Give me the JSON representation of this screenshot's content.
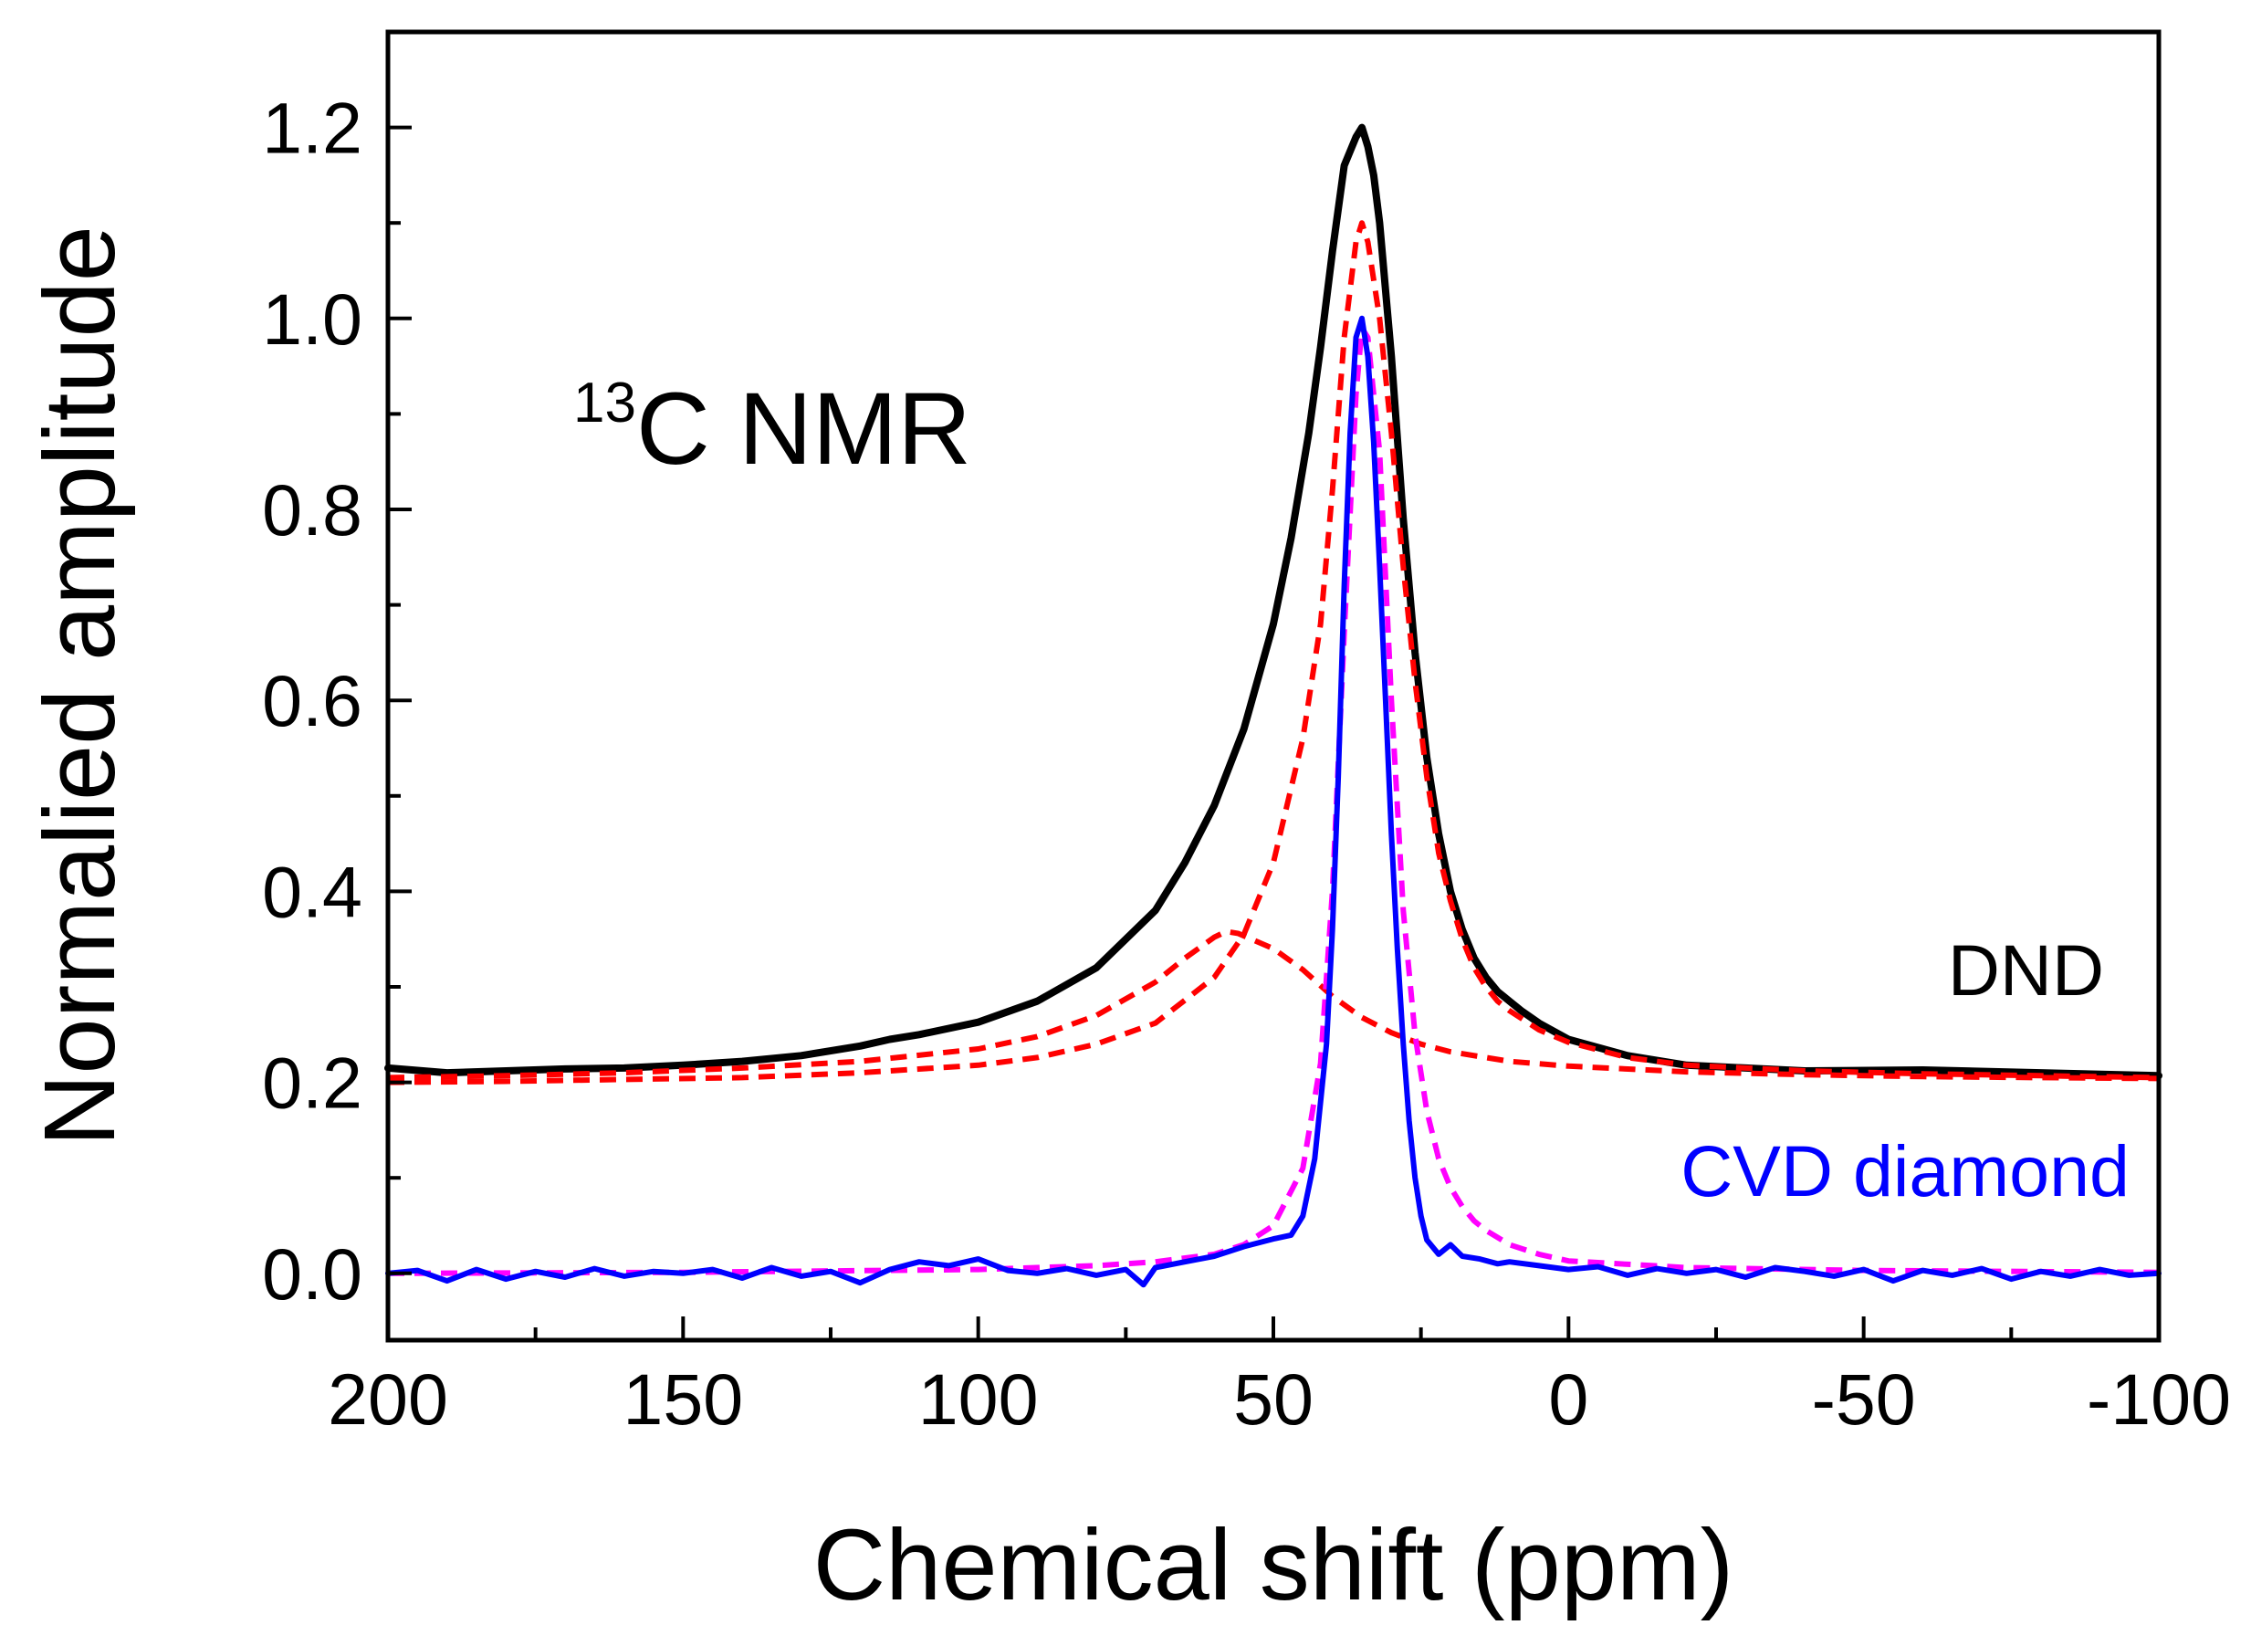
{
  "chart_data": {
    "type": "line",
    "title": "",
    "xlabel": "Chemical shift  (ppm)",
    "ylabel": "Normalied amplitude",
    "xlim": [
      200,
      -100
    ],
    "ylim": [
      -0.07,
      1.3
    ],
    "x_reversed": true,
    "grid": false,
    "legend": "none",
    "x_ticks": [
      200,
      150,
      100,
      50,
      0,
      -50,
      -100
    ],
    "x_tick_labels": [
      "200",
      "150",
      "100",
      "50",
      "0",
      "-50",
      "-100"
    ],
    "y_ticks": [
      0.0,
      0.2,
      0.4,
      0.6,
      0.8,
      1.0,
      1.2
    ],
    "y_tick_labels": [
      "0.0",
      "0.2",
      "0.4",
      "0.6",
      "0.8",
      "1.0",
      "1.2"
    ],
    "annotations": [
      {
        "text_sup": "13",
        "text": "C NMR",
        "color": "#000000"
      },
      {
        "text": "DND",
        "color": "#000000"
      },
      {
        "text": "CVD diamond",
        "color": "#0000ff"
      }
    ],
    "series": [
      {
        "color": "#000000",
        "style": "solid",
        "width": 8,
        "x": [
          200,
          190,
          180,
          170,
          160,
          150,
          140,
          130,
          120,
          115,
          110,
          100,
          90,
          80,
          70,
          65,
          60,
          55,
          50,
          47,
          44,
          42,
          40,
          38,
          36,
          35,
          34,
          33,
          32,
          30,
          28,
          26,
          24,
          22,
          20,
          18,
          16,
          14,
          12,
          10,
          8,
          5,
          0,
          -10,
          -20,
          -40,
          -60,
          -80,
          -100
        ],
        "y": [
          0.215,
          0.21,
          0.212,
          0.214,
          0.215,
          0.218,
          0.222,
          0.228,
          0.238,
          0.245,
          0.25,
          0.263,
          0.285,
          0.32,
          0.38,
          0.43,
          0.49,
          0.57,
          0.68,
          0.77,
          0.88,
          0.97,
          1.07,
          1.16,
          1.19,
          1.2,
          1.18,
          1.15,
          1.1,
          0.96,
          0.79,
          0.65,
          0.54,
          0.46,
          0.4,
          0.36,
          0.33,
          0.31,
          0.295,
          0.285,
          0.275,
          0.262,
          0.245,
          0.228,
          0.218,
          0.212,
          0.213,
          0.21,
          0.207
        ]
      },
      {
        "color": "#ff0000",
        "style": "dashed",
        "width": 6,
        "x": [
          200,
          180,
          160,
          140,
          120,
          100,
          90,
          80,
          70,
          60,
          55,
          50,
          45,
          42,
          40,
          38,
          36,
          35,
          34,
          32,
          30,
          28,
          26,
          24,
          22,
          20,
          18,
          16,
          14,
          12,
          10,
          5,
          0,
          -10,
          -20,
          -40,
          -60,
          -80,
          -100
        ],
        "y": [
          0.2,
          0.201,
          0.203,
          0.205,
          0.21,
          0.218,
          0.226,
          0.24,
          0.262,
          0.31,
          0.355,
          0.43,
          0.56,
          0.68,
          0.82,
          0.98,
          1.08,
          1.1,
          1.08,
          1.0,
          0.88,
          0.74,
          0.62,
          0.52,
          0.44,
          0.39,
          0.35,
          0.32,
          0.3,
          0.285,
          0.275,
          0.255,
          0.242,
          0.226,
          0.218,
          0.212,
          0.209,
          0.207,
          0.205
        ]
      },
      {
        "color": "#ff0000",
        "style": "dashed",
        "width": 6,
        "x": [
          200,
          180,
          160,
          140,
          120,
          100,
          90,
          80,
          70,
          65,
          60,
          58,
          56,
          50,
          45,
          40,
          35,
          30,
          25,
          20,
          10,
          0,
          -20,
          -40,
          -60,
          -80,
          -100
        ],
        "y": [
          0.205,
          0.207,
          0.21,
          0.215,
          0.222,
          0.235,
          0.248,
          0.27,
          0.305,
          0.33,
          0.352,
          0.358,
          0.356,
          0.34,
          0.318,
          0.29,
          0.268,
          0.252,
          0.24,
          0.232,
          0.222,
          0.217,
          0.211,
          0.208,
          0.206,
          0.205,
          0.204
        ]
      },
      {
        "color": "#ff00ff",
        "style": "dashed",
        "width": 6,
        "x": [
          200,
          150,
          100,
          80,
          70,
          60,
          55,
          50,
          45,
          42,
          40,
          38,
          36,
          35,
          34,
          32,
          30,
          28,
          26,
          24,
          22,
          20,
          18,
          16,
          14,
          10,
          5,
          0,
          -20,
          -50,
          -100
        ],
        "y": [
          0.0,
          0.001,
          0.004,
          0.008,
          0.012,
          0.02,
          0.03,
          0.05,
          0.11,
          0.22,
          0.4,
          0.67,
          0.92,
          0.99,
          0.98,
          0.86,
          0.6,
          0.38,
          0.25,
          0.17,
          0.12,
          0.09,
          0.07,
          0.055,
          0.045,
          0.03,
          0.02,
          0.013,
          0.006,
          0.003,
          0.001
        ]
      },
      {
        "color": "#0000ff",
        "style": "solid",
        "width": 6,
        "x": [
          200,
          195,
          190,
          185,
          180,
          175,
          170,
          165,
          160,
          155,
          150,
          145,
          140,
          135,
          130,
          125,
          120,
          115,
          110,
          105,
          100,
          95,
          90,
          85,
          80,
          75,
          72,
          70,
          65,
          60,
          55,
          50,
          47,
          45,
          43,
          41,
          40,
          39,
          38,
          37,
          36,
          35,
          34,
          33,
          32,
          31,
          30,
          29,
          28,
          27,
          26,
          25,
          24,
          22,
          20,
          18,
          15,
          12,
          10,
          5,
          0,
          -5,
          -10,
          -15,
          -20,
          -25,
          -30,
          -35,
          -40,
          -45,
          -50,
          -55,
          -60,
          -65,
          -70,
          -75,
          -80,
          -85,
          -90,
          -95,
          -100
        ],
        "y": [
          0.0,
          0.003,
          -0.008,
          0.004,
          -0.006,
          0.002,
          -0.004,
          0.005,
          -0.003,
          0.002,
          0.0,
          0.004,
          -0.005,
          0.006,
          -0.003,
          0.002,
          -0.01,
          0.004,
          0.012,
          0.008,
          0.015,
          0.003,
          0.0,
          0.005,
          -0.002,
          0.004,
          -0.012,
          0.006,
          0.012,
          0.018,
          0.028,
          0.036,
          0.04,
          0.06,
          0.12,
          0.24,
          0.36,
          0.52,
          0.72,
          0.88,
          0.98,
          1.0,
          0.96,
          0.87,
          0.74,
          0.6,
          0.46,
          0.34,
          0.24,
          0.16,
          0.1,
          0.06,
          0.035,
          0.02,
          0.03,
          0.018,
          0.015,
          0.01,
          0.012,
          0.008,
          0.004,
          0.007,
          -0.002,
          0.005,
          0.0,
          0.004,
          -0.004,
          0.006,
          0.002,
          -0.003,
          0.004,
          -0.008,
          0.003,
          -0.002,
          0.005,
          -0.006,
          0.002,
          -0.003,
          0.004,
          -0.002,
          0.0
        ]
      }
    ]
  }
}
